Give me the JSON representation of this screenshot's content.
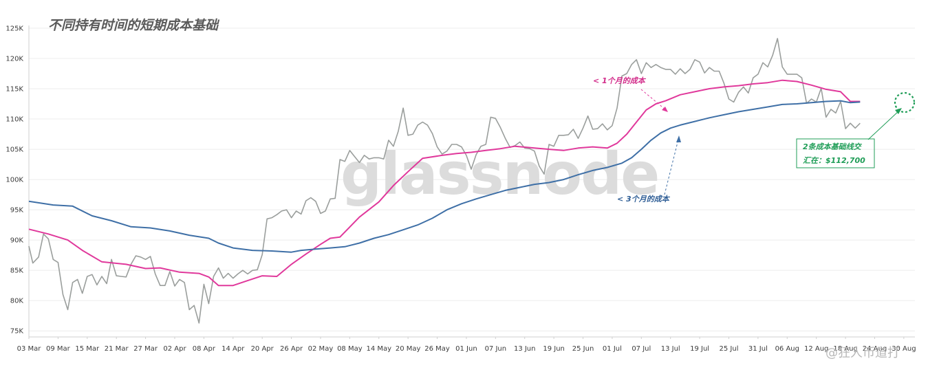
{
  "chart_data": {
    "type": "line",
    "title": "不同持有时间的短期成本基础",
    "watermark": "glassnode",
    "source_watermark": "@狂人币道打",
    "x_tick_labels": [
      "03 Mar",
      "09 Mar",
      "15 Mar",
      "21 Mar",
      "27 Mar",
      "02 Apr",
      "08 Apr",
      "14 Apr",
      "20 Apr",
      "26 Apr",
      "02 May",
      "08 May",
      "14 May",
      "20 May",
      "26 May",
      "01 Jun",
      "07 Jun",
      "13 Jun",
      "19 Jun",
      "25 Jun",
      "01 Jul",
      "07 Jul",
      "13 Jul",
      "19 Jul",
      "25 Jul",
      "31 Jul",
      "06 Aug",
      "12 Aug",
      "18 Aug",
      "24 Aug",
      "30 Aug"
    ],
    "y_tick_labels": [
      "75K",
      "80K",
      "85K",
      "90K",
      "95K",
      "100K",
      "105K",
      "110K",
      "115K",
      "120K",
      "125K"
    ],
    "ylim": [
      74000,
      125000
    ],
    "x_day_range": [
      0,
      182
    ],
    "grid": true,
    "colors": {
      "price": "#9a9e9c",
      "one_month": "#e0389b",
      "three_month": "#3e6fa6",
      "cross": "#1f9d57",
      "title": "#5a5a5a"
    },
    "series": [
      {
        "key": "price",
        "points": [
          [
            0,
            89000
          ],
          [
            0.8,
            86200
          ],
          [
            2,
            87200
          ],
          [
            3,
            91000
          ],
          [
            4,
            90200
          ],
          [
            5,
            86800
          ],
          [
            6,
            86300
          ],
          [
            7,
            81000
          ],
          [
            8,
            78500
          ],
          [
            9,
            83000
          ],
          [
            10,
            83500
          ],
          [
            11,
            81200
          ],
          [
            12,
            84000
          ],
          [
            13,
            84300
          ],
          [
            14,
            82600
          ],
          [
            15,
            84000
          ],
          [
            16,
            82800
          ],
          [
            17,
            86800
          ],
          [
            18,
            84100
          ],
          [
            19,
            84000
          ],
          [
            20,
            83900
          ],
          [
            21,
            86000
          ],
          [
            22,
            87400
          ],
          [
            23,
            87200
          ],
          [
            24,
            86800
          ],
          [
            25,
            87300
          ],
          [
            26,
            84400
          ],
          [
            27,
            82500
          ],
          [
            28,
            82500
          ],
          [
            29,
            84800
          ],
          [
            30,
            82400
          ],
          [
            31,
            83500
          ],
          [
            32,
            83000
          ],
          [
            33,
            78500
          ],
          [
            34,
            79200
          ],
          [
            35,
            76300
          ],
          [
            36,
            82700
          ],
          [
            37,
            79500
          ],
          [
            38,
            84000
          ],
          [
            39,
            85400
          ],
          [
            40,
            83700
          ],
          [
            41,
            84500
          ],
          [
            42,
            83700
          ],
          [
            43,
            84400
          ],
          [
            44,
            85000
          ],
          [
            45,
            84400
          ],
          [
            46,
            85000
          ],
          [
            47,
            85100
          ],
          [
            48,
            87600
          ],
          [
            49,
            93500
          ],
          [
            50,
            93700
          ],
          [
            51,
            94200
          ],
          [
            52,
            94800
          ],
          [
            53,
            95000
          ],
          [
            54,
            93700
          ],
          [
            55,
            94800
          ],
          [
            56,
            94300
          ],
          [
            57,
            96500
          ],
          [
            58,
            97000
          ],
          [
            59,
            96400
          ],
          [
            60,
            94400
          ],
          [
            61,
            94800
          ],
          [
            62,
            96800
          ],
          [
            63,
            96900
          ],
          [
            64,
            103300
          ],
          [
            65,
            103000
          ],
          [
            66,
            104800
          ],
          [
            67,
            103800
          ],
          [
            68,
            102800
          ],
          [
            69,
            104000
          ],
          [
            70,
            103400
          ],
          [
            71,
            103600
          ],
          [
            72,
            103600
          ],
          [
            73,
            103400
          ],
          [
            74,
            106500
          ],
          [
            75,
            105500
          ],
          [
            76,
            108000
          ],
          [
            77,
            111800
          ],
          [
            78,
            107300
          ],
          [
            79,
            107500
          ],
          [
            80,
            109000
          ],
          [
            81,
            109500
          ],
          [
            82,
            109000
          ],
          [
            83,
            107600
          ],
          [
            84,
            105400
          ],
          [
            85,
            104200
          ],
          [
            86,
            104700
          ],
          [
            87,
            105800
          ],
          [
            88,
            105800
          ],
          [
            89,
            105400
          ],
          [
            90,
            104000
          ],
          [
            91,
            101700
          ],
          [
            92,
            104100
          ],
          [
            93,
            105500
          ],
          [
            94,
            105800
          ],
          [
            95,
            110300
          ],
          [
            96,
            110100
          ],
          [
            97,
            108600
          ],
          [
            98,
            106800
          ],
          [
            99,
            105300
          ],
          [
            100,
            105600
          ],
          [
            101,
            106200
          ],
          [
            102,
            105200
          ],
          [
            103,
            105100
          ],
          [
            104,
            104700
          ],
          [
            105,
            102200
          ],
          [
            106,
            100900
          ],
          [
            107,
            105800
          ],
          [
            108,
            105500
          ],
          [
            109,
            107300
          ],
          [
            110,
            107300
          ],
          [
            111,
            107400
          ],
          [
            112,
            108300
          ],
          [
            113,
            106800
          ],
          [
            114,
            108500
          ],
          [
            115,
            110500
          ],
          [
            116,
            108300
          ],
          [
            117,
            108400
          ],
          [
            118,
            109200
          ],
          [
            119,
            108200
          ],
          [
            120,
            108900
          ],
          [
            121,
            111800
          ],
          [
            122,
            117100
          ],
          [
            123,
            117500
          ],
          [
            124,
            119000
          ],
          [
            125,
            119800
          ],
          [
            126,
            117500
          ],
          [
            127,
            119300
          ],
          [
            128,
            118500
          ],
          [
            129,
            119000
          ],
          [
            130,
            118500
          ],
          [
            131,
            118200
          ],
          [
            132,
            118200
          ],
          [
            133,
            117400
          ],
          [
            134,
            118300
          ],
          [
            135,
            117500
          ],
          [
            136,
            118200
          ],
          [
            137,
            119800
          ],
          [
            138,
            119400
          ],
          [
            139,
            117600
          ],
          [
            140,
            118500
          ],
          [
            141,
            117900
          ],
          [
            142,
            117900
          ],
          [
            143,
            115900
          ],
          [
            144,
            113300
          ],
          [
            145,
            112800
          ],
          [
            146,
            114400
          ],
          [
            147,
            115300
          ],
          [
            148,
            114300
          ],
          [
            149,
            116800
          ],
          [
            150,
            117400
          ],
          [
            151,
            119300
          ],
          [
            152,
            118600
          ],
          [
            153,
            120500
          ],
          [
            154,
            123300
          ],
          [
            155,
            118600
          ],
          [
            156,
            117400
          ],
          [
            157,
            117400
          ],
          [
            158,
            117400
          ],
          [
            159,
            116800
          ],
          [
            160,
            112600
          ],
          [
            161,
            113300
          ],
          [
            162,
            112800
          ],
          [
            163,
            115100
          ],
          [
            164,
            110300
          ],
          [
            165,
            111600
          ],
          [
            166,
            111000
          ],
          [
            167,
            112900
          ],
          [
            168,
            108400
          ],
          [
            169,
            109300
          ],
          [
            170,
            108500
          ],
          [
            171,
            109300
          ]
        ]
      },
      {
        "key": "one_month",
        "name": "< 1个月的成本",
        "points": [
          [
            0,
            91800
          ],
          [
            4,
            91000
          ],
          [
            8,
            90000
          ],
          [
            11,
            88300
          ],
          [
            15,
            86400
          ],
          [
            20,
            86000
          ],
          [
            24,
            85300
          ],
          [
            27,
            85400
          ],
          [
            31,
            84700
          ],
          [
            35,
            84500
          ],
          [
            37,
            83900
          ],
          [
            39,
            82500
          ],
          [
            42,
            82500
          ],
          [
            45,
            83300
          ],
          [
            48,
            84100
          ],
          [
            51,
            84000
          ],
          [
            54,
            86000
          ],
          [
            57,
            87700
          ],
          [
            60,
            89300
          ],
          [
            62,
            90300
          ],
          [
            64,
            90500
          ],
          [
            68,
            93800
          ],
          [
            72,
            96300
          ],
          [
            75,
            99000
          ],
          [
            78,
            101300
          ],
          [
            81,
            103500
          ],
          [
            85,
            104000
          ],
          [
            88,
            104300
          ],
          [
            91,
            104500
          ],
          [
            94,
            104800
          ],
          [
            97,
            105100
          ],
          [
            100,
            105500
          ],
          [
            104,
            105200
          ],
          [
            107,
            105000
          ],
          [
            110,
            104800
          ],
          [
            113,
            105200
          ],
          [
            116,
            105400
          ],
          [
            119,
            105200
          ],
          [
            121,
            106000
          ],
          [
            123,
            107500
          ],
          [
            125,
            109500
          ],
          [
            127,
            111500
          ],
          [
            129,
            112500
          ],
          [
            131,
            113000
          ],
          [
            134,
            114000
          ],
          [
            137,
            114500
          ],
          [
            140,
            115000
          ],
          [
            143,
            115300
          ],
          [
            146,
            115500
          ],
          [
            149,
            115800
          ],
          [
            152,
            116000
          ],
          [
            155,
            116400
          ],
          [
            158,
            116200
          ],
          [
            161,
            115600
          ],
          [
            164,
            114900
          ],
          [
            167,
            114500
          ],
          [
            169,
            112900
          ],
          [
            171,
            112900
          ]
        ]
      },
      {
        "key": "three_month",
        "name": "< 3个月的成本",
        "points": [
          [
            0,
            96400
          ],
          [
            5,
            95800
          ],
          [
            9,
            95600
          ],
          [
            13,
            94000
          ],
          [
            17,
            93200
          ],
          [
            21,
            92200
          ],
          [
            25,
            92000
          ],
          [
            29,
            91500
          ],
          [
            33,
            90800
          ],
          [
            37,
            90300
          ],
          [
            39,
            89500
          ],
          [
            42,
            88700
          ],
          [
            46,
            88300
          ],
          [
            50,
            88200
          ],
          [
            54,
            88000
          ],
          [
            56,
            88300
          ],
          [
            59,
            88500
          ],
          [
            62,
            88700
          ],
          [
            65,
            88900
          ],
          [
            68,
            89500
          ],
          [
            71,
            90300
          ],
          [
            74,
            90900
          ],
          [
            77,
            91700
          ],
          [
            80,
            92500
          ],
          [
            83,
            93600
          ],
          [
            86,
            95000
          ],
          [
            89,
            96000
          ],
          [
            92,
            96800
          ],
          [
            95,
            97500
          ],
          [
            98,
            98200
          ],
          [
            101,
            98700
          ],
          [
            104,
            99200
          ],
          [
            107,
            99500
          ],
          [
            110,
            100000
          ],
          [
            113,
            100800
          ],
          [
            116,
            101500
          ],
          [
            119,
            102000
          ],
          [
            122,
            102700
          ],
          [
            124,
            103600
          ],
          [
            126,
            105000
          ],
          [
            128,
            106500
          ],
          [
            130,
            107700
          ],
          [
            132,
            108500
          ],
          [
            134,
            109000
          ],
          [
            137,
            109600
          ],
          [
            140,
            110200
          ],
          [
            143,
            110700
          ],
          [
            146,
            111200
          ],
          [
            149,
            111600
          ],
          [
            152,
            112000
          ],
          [
            155,
            112400
          ],
          [
            158,
            112500
          ],
          [
            161,
            112700
          ],
          [
            164,
            112900
          ],
          [
            167,
            113000
          ],
          [
            169,
            112700
          ],
          [
            171,
            112800
          ]
        ]
      }
    ],
    "annotations": {
      "one_month_label": "< 1个月的成本",
      "three_month_label": "< 3个月的成本",
      "cross_label_line1": "2条成本基础线交",
      "cross_label_line2": "汇在：$112,700",
      "cross_value": 112700
    }
  }
}
